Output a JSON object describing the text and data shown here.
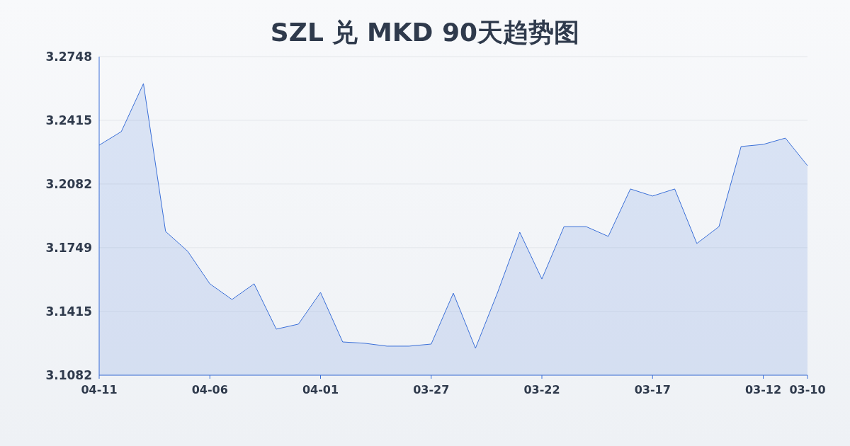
{
  "chart_data": {
    "type": "area",
    "title": "SZL 兑 MKD 90天趋势图",
    "categories": [
      "04-11",
      null,
      null,
      null,
      null,
      "04-06",
      null,
      null,
      null,
      null,
      "04-01",
      null,
      null,
      null,
      null,
      "03-27",
      null,
      null,
      null,
      null,
      "03-22",
      null,
      null,
      null,
      null,
      "03-17",
      null,
      null,
      null,
      null,
      "03-12",
      null,
      "03-10"
    ],
    "series": [
      {
        "color": "#3a6fd8",
        "values": [
          3.2285,
          3.2356,
          3.2607,
          3.1834,
          3.173,
          3.156,
          3.1478,
          3.156,
          3.1323,
          3.1349,
          3.1515,
          3.1256,
          3.1249,
          3.1234,
          3.1234,
          3.1245,
          3.1511,
          3.1223,
          3.1515,
          3.183,
          3.1585,
          3.1859,
          3.1859,
          3.1808,
          3.2056,
          3.2019,
          3.2056,
          3.1771,
          3.1859,
          3.2278,
          3.2289,
          3.2322,
          3.2178
        ]
      }
    ],
    "ylim": [
      3.1082,
      3.2748
    ],
    "yticks": [
      3.1082,
      3.1415,
      3.1749,
      3.2082,
      3.2415,
      3.2748
    ],
    "grid": "y"
  }
}
